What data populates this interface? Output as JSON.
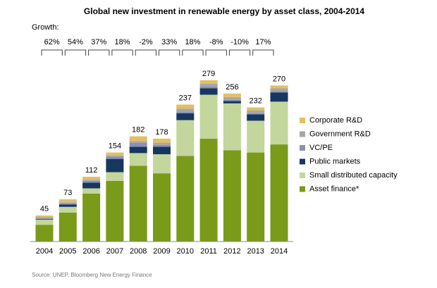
{
  "chart_data": {
    "type": "stacked_bar",
    "title": "Global new investment in renewable energy by asset class, 2004-2014",
    "growth_label": "Growth:",
    "growth": [
      "62%",
      "54%",
      "37%",
      "18%",
      "-2%",
      "33%",
      "18%",
      "-8%",
      "-10%",
      "17%"
    ],
    "source": "Source: UNEP, Bloomberg New Energy Finance",
    "categories": [
      "2004",
      "2005",
      "2006",
      "2007",
      "2008",
      "2009",
      "2010",
      "2011",
      "2012",
      "2013",
      "2014"
    ],
    "totals": [
      45,
      73,
      112,
      154,
      182,
      178,
      237,
      279,
      256,
      232,
      270
    ],
    "series": [
      {
        "name": "Asset finance*",
        "color": "#7a9a1a",
        "values": [
          29,
          50,
          83,
          105,
          131,
          118,
          148,
          178,
          158,
          154,
          168
        ]
      },
      {
        "name": "Small distributed capacity",
        "color": "#c3d69b",
        "values": [
          9,
          10,
          9,
          15,
          22,
          33,
          62,
          76,
          81,
          55,
          74
        ]
      },
      {
        "name": "Public markets",
        "color": "#17375e",
        "values": [
          1,
          4,
          10,
          23,
          11,
          13,
          12,
          11,
          4,
          11,
          16
        ]
      },
      {
        "name": "VC/PE",
        "color": "#8a8fb8",
        "values": [
          1,
          2,
          3,
          4,
          7,
          3,
          3,
          3,
          2,
          2,
          2
        ]
      },
      {
        "name": "Government R&D",
        "color": "#a6a6a6",
        "values": [
          2,
          2,
          2,
          2,
          3,
          4,
          5,
          5,
          5,
          5,
          5
        ]
      },
      {
        "name": "Corporate R&D",
        "color": "#e0c060",
        "values": [
          3,
          5,
          5,
          5,
          8,
          7,
          7,
          6,
          6,
          5,
          5
        ]
      }
    ]
  }
}
